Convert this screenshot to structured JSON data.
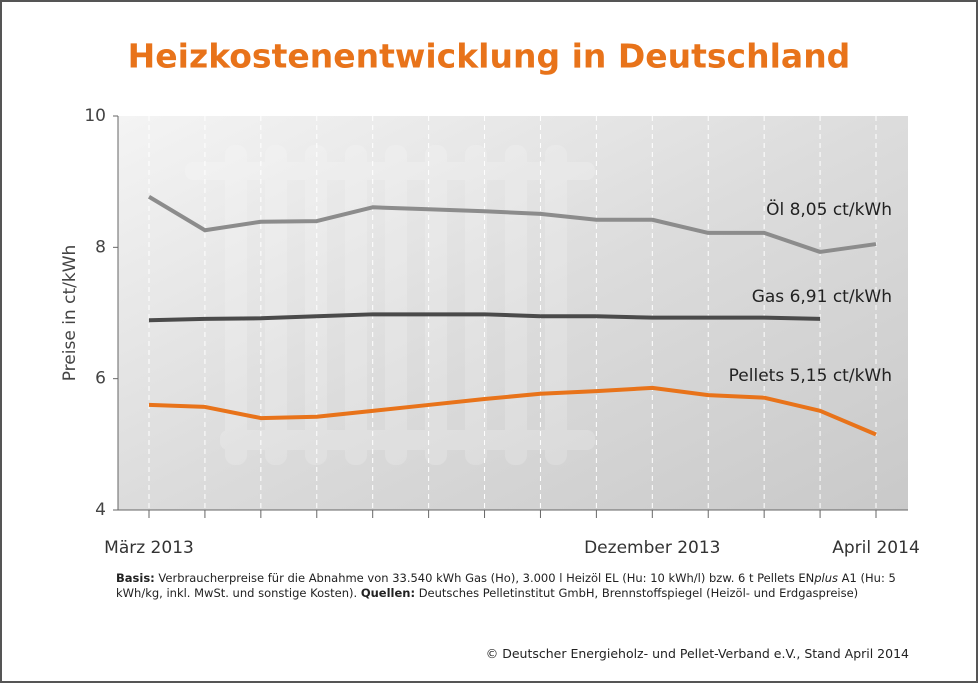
{
  "chart_data": {
    "type": "line",
    "title": "Heizkostenentwicklung in Deutschland",
    "y_label": "Preise in ct/kWh",
    "categories": [
      "März 2013",
      null,
      null,
      null,
      null,
      null,
      null,
      null,
      null,
      "Dezember 2013",
      null,
      null,
      null,
      "April 2014"
    ],
    "ylim": [
      4,
      10
    ],
    "yticks": [
      4,
      6,
      8,
      10
    ],
    "grid": true,
    "series": [
      {
        "name": "Öl  8,05 ct/kWh",
        "color": "#8c8c8c",
        "values": [
          8.77,
          8.26,
          8.39,
          8.4,
          8.61,
          8.58,
          8.55,
          8.51,
          8.42,
          8.42,
          8.22,
          8.22,
          7.93,
          8.05
        ]
      },
      {
        "name": "Gas  6,91 ct/kWh",
        "color": "#4a4a4a",
        "values": [
          6.89,
          6.91,
          6.92,
          6.95,
          6.98,
          6.98,
          6.98,
          6.95,
          6.95,
          6.93,
          6.93,
          6.93,
          6.91,
          null
        ]
      },
      {
        "name": "Pellets  5,15 ct/kWh",
        "color": "#e8731a",
        "values": [
          5.6,
          5.57,
          5.4,
          5.42,
          5.51,
          5.6,
          5.69,
          5.77,
          5.81,
          5.86,
          5.75,
          5.71,
          5.51,
          5.15
        ]
      }
    ],
    "footnote": [
      {
        "text": "Basis:",
        "bold": true
      },
      {
        "text": " Verbraucherpreise für die Abnahme von 33.540 kWh Gas (Ho), 3.000 l Heizöl EL (Hu: 10 kWh/l) bzw. 6 t Pellets EN"
      },
      {
        "text": "plus",
        "italic": true
      },
      {
        "text": " A1 (Hu: 5 kWh/kg, inkl. MwSt. und sonstige Kosten). "
      },
      {
        "text": "Quellen:",
        "bold": true
      },
      {
        "text": " Deutsches Pelletinstitut GmbH, Brennstoffspiegel (Heizöl- und Erdgaspreise)"
      }
    ],
    "copyright": "© Deutscher Energieholz- und Pellet-Verband e.V., Stand April 2014"
  }
}
